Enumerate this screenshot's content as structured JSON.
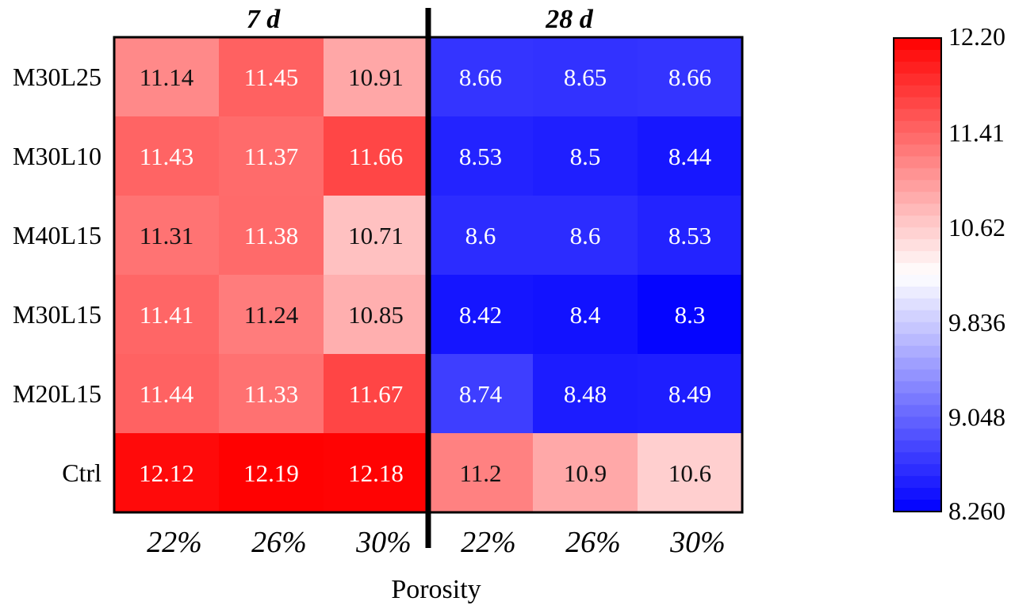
{
  "chart_data": {
    "type": "heatmap",
    "group_labels": [
      "7 d",
      "28 d"
    ],
    "rows": [
      "M30L25",
      "M30L10",
      "M40L15",
      "M30L15",
      "M20L15",
      "Ctrl"
    ],
    "columns": [
      "22%",
      "26%",
      "30%",
      "22%",
      "26%",
      "30%"
    ],
    "values": [
      [
        "11.14",
        "11.45",
        "10.91",
        "8.66",
        "8.65",
        "8.66"
      ],
      [
        "11.43",
        "11.37",
        "11.66",
        "8.53",
        "8.5",
        "8.44"
      ],
      [
        "11.31",
        "11.38",
        "10.71",
        "8.6",
        "8.6",
        "8.53"
      ],
      [
        "11.41",
        "11.24",
        "10.85",
        "8.42",
        "8.4",
        "8.3"
      ],
      [
        "11.44",
        "11.33",
        "11.67",
        "8.74",
        "8.48",
        "8.49"
      ],
      [
        "12.12",
        "12.19",
        "12.18",
        "11.2",
        "10.9",
        "10.6"
      ]
    ],
    "xlabel": "Porosity",
    "colorbar": {
      "min": 8.26,
      "max": 12.2,
      "ticks": [
        "12.20",
        "11.41",
        "10.62",
        "9.836",
        "9.048",
        "8.260"
      ],
      "low_color": "#0000ff",
      "mid_color": "#ffffff",
      "high_color": "#ff0000"
    }
  }
}
